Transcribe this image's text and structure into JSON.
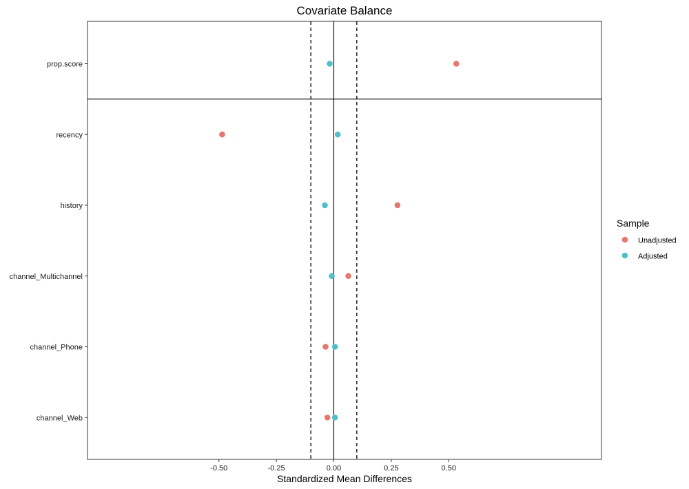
{
  "chart_data": {
    "type": "scatter",
    "title": "Covariate Balance",
    "xlabel": "Standardized Mean Differences",
    "ylabel": "",
    "xlim": [
      -0.5,
      0.5
    ],
    "x_ticks": [
      "-0.50",
      "-0.25",
      "0.00",
      "0.25",
      "0.50"
    ],
    "x_tick_values": [
      -0.5,
      -0.25,
      0.0,
      0.25,
      0.5
    ],
    "categories": [
      "prop.score",
      "recency",
      "history",
      "channel_Multichannel",
      "channel_Phone",
      "channel_Web"
    ],
    "threshold_lines": [
      -0.1,
      0.1
    ],
    "zero_line": 0,
    "grid": false,
    "legend": {
      "title": "Sample",
      "position": "right"
    },
    "series": [
      {
        "name": "Unadjusted",
        "color": "#E5776E",
        "values": [
          0.533,
          -0.486,
          0.277,
          0.063,
          -0.036,
          -0.028
        ]
      },
      {
        "name": "Adjusted",
        "color": "#52BEC8",
        "values": [
          -0.018,
          0.017,
          -0.039,
          -0.009,
          0.005,
          0.005
        ]
      }
    ]
  }
}
